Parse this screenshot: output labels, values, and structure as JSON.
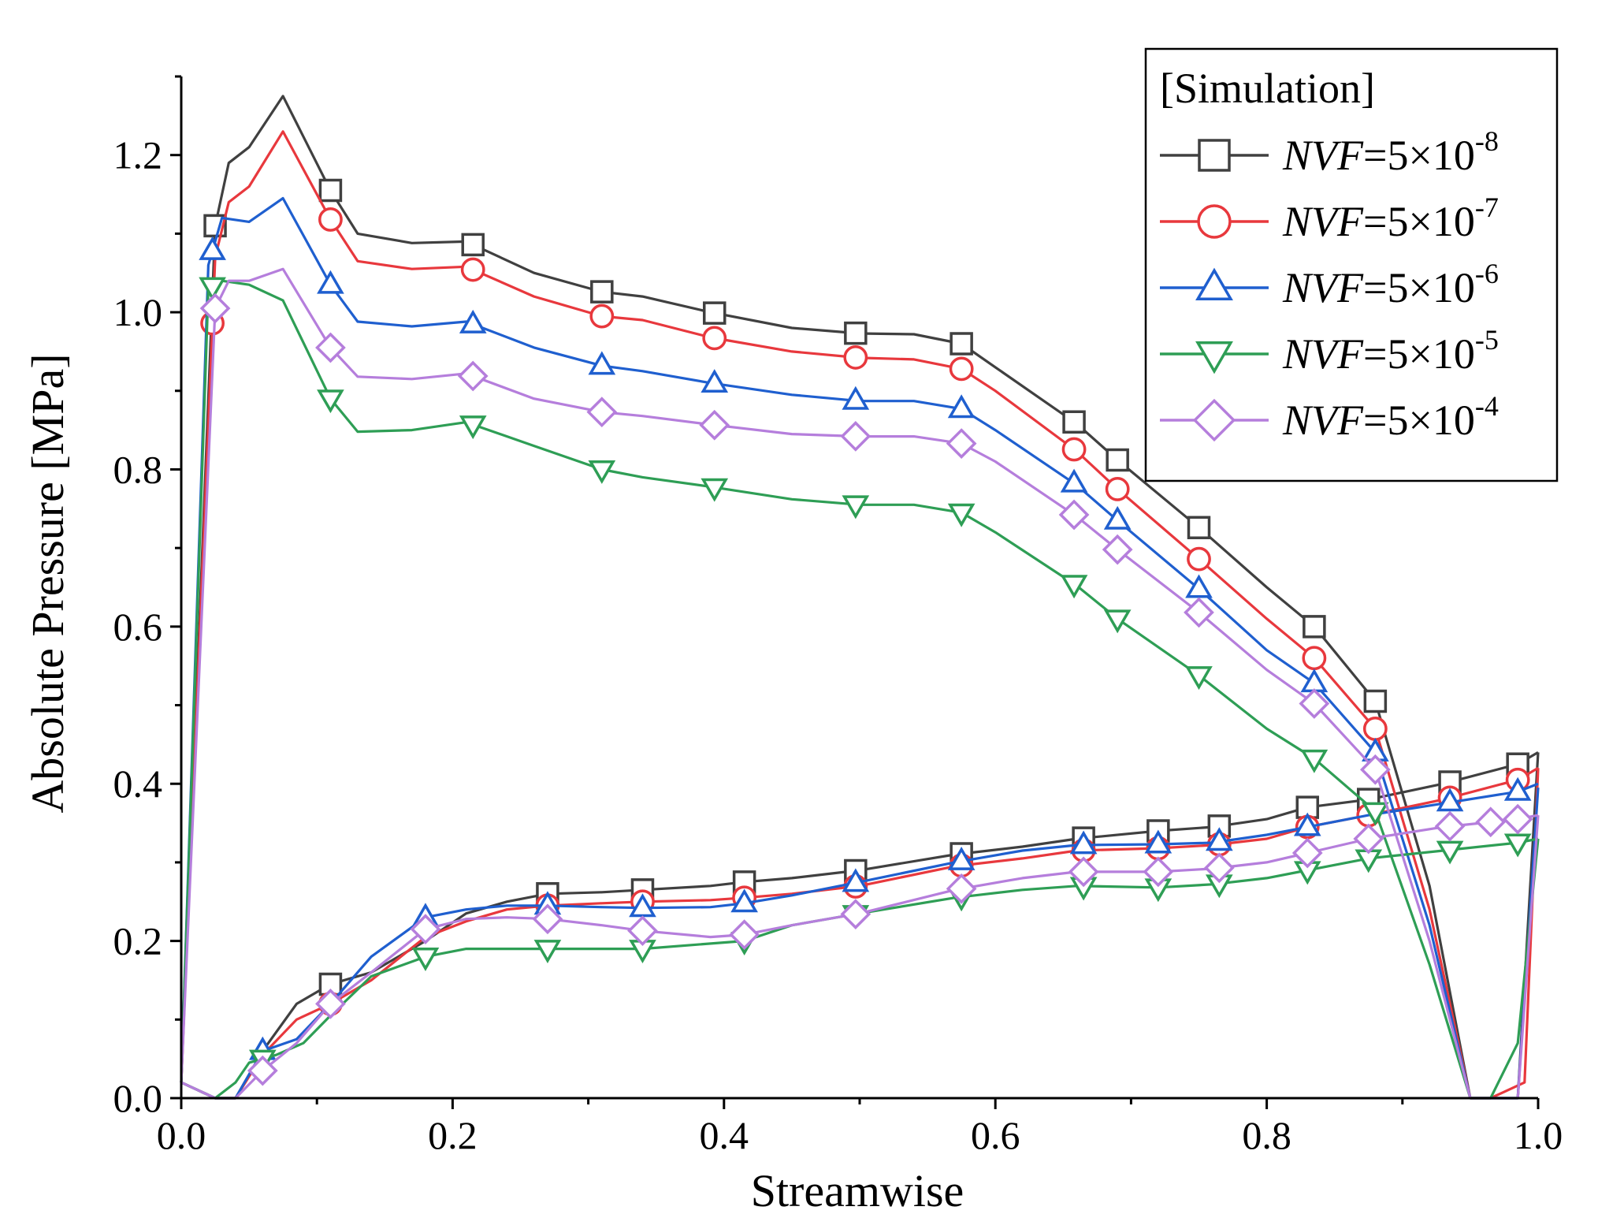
{
  "chart_data": {
    "type": "line",
    "title": "",
    "xlabel": "Streamwise",
    "ylabel": "Absolute Pressure [MPa]",
    "xlim": [
      0.0,
      1.0
    ],
    "ylim": [
      0.0,
      1.3
    ],
    "x_ticks": [
      "0.0",
      "0.2",
      "0.4",
      "0.6",
      "0.8",
      "1.0"
    ],
    "y_ticks": [
      "0.0",
      "0.2",
      "0.4",
      "0.6",
      "0.8",
      "1.0",
      "1.2"
    ],
    "legend": {
      "title": "[Simulation]",
      "position": "top-right",
      "prefix": "NVF",
      "equals": "=5×10"
    },
    "series": [
      {
        "name": "NVF=5×10-8",
        "exponent": "-8",
        "color": "#404040",
        "marker": "square",
        "upper": {
          "x": [
            0.0,
            0.025,
            0.035,
            0.05,
            0.075,
            0.11,
            0.13,
            0.17,
            0.21,
            0.26,
            0.31,
            0.34,
            0.39,
            0.45,
            0.5,
            0.54,
            0.575,
            0.6,
            0.66,
            0.69,
            0.75,
            0.8,
            0.835,
            0.88,
            0.92,
            0.95,
            0.965,
            0.985,
            1.0
          ],
          "y": [
            0.02,
            1.11,
            1.19,
            1.21,
            1.275,
            1.155,
            1.1,
            1.088,
            1.09,
            1.05,
            1.026,
            1.02,
            1.0,
            0.98,
            0.973,
            0.972,
            0.96,
            0.93,
            0.858,
            0.812,
            0.726,
            0.65,
            0.6,
            0.505,
            0.27,
            0.0,
            0.0,
            0.0,
            0.44
          ]
        },
        "lower": {
          "x": [
            0.0,
            0.025,
            0.04,
            0.06,
            0.085,
            0.11,
            0.14,
            0.18,
            0.21,
            0.24,
            0.27,
            0.31,
            0.34,
            0.39,
            0.415,
            0.45,
            0.5,
            0.57,
            0.62,
            0.66,
            0.72,
            0.76,
            0.8,
            0.83,
            0.875,
            0.93,
            0.985,
            1.0
          ],
          "y": [
            0.02,
            0.0,
            0.0,
            0.06,
            0.12,
            0.145,
            0.16,
            0.2,
            0.235,
            0.25,
            0.26,
            0.262,
            0.265,
            0.27,
            0.275,
            0.28,
            0.29,
            0.31,
            0.32,
            0.33,
            0.34,
            0.345,
            0.355,
            0.37,
            0.38,
            0.4,
            0.425,
            0.44
          ]
        },
        "markers_upper_x": [
          0.025,
          0.11,
          0.215,
          0.31,
          0.393,
          0.497,
          0.575,
          0.658,
          0.69,
          0.75,
          0.835,
          0.88
        ],
        "markers_lower_x": [
          0.11,
          0.27,
          0.34,
          0.415,
          0.497,
          0.575,
          0.665,
          0.72,
          0.765,
          0.83,
          0.875,
          0.935,
          0.985
        ]
      },
      {
        "name": "NVF=5×10-7",
        "exponent": "-7",
        "color": "#e8383d",
        "marker": "circle",
        "upper": {
          "x": [
            0.0,
            0.025,
            0.035,
            0.05,
            0.075,
            0.11,
            0.13,
            0.17,
            0.21,
            0.26,
            0.31,
            0.34,
            0.39,
            0.45,
            0.5,
            0.54,
            0.575,
            0.6,
            0.66,
            0.69,
            0.75,
            0.8,
            0.835,
            0.88,
            0.92,
            0.95,
            0.965,
            0.99,
            1.0
          ],
          "y": [
            0.02,
            1.07,
            1.14,
            1.16,
            1.23,
            1.118,
            1.065,
            1.055,
            1.058,
            1.02,
            0.995,
            0.99,
            0.968,
            0.95,
            0.942,
            0.94,
            0.928,
            0.9,
            0.823,
            0.775,
            0.686,
            0.61,
            0.56,
            0.47,
            0.24,
            0.0,
            0.0,
            0.02,
            0.42
          ]
        },
        "lower": {
          "x": [
            0.0,
            0.025,
            0.04,
            0.06,
            0.085,
            0.11,
            0.14,
            0.18,
            0.21,
            0.24,
            0.27,
            0.31,
            0.34,
            0.39,
            0.415,
            0.45,
            0.5,
            0.57,
            0.62,
            0.66,
            0.72,
            0.76,
            0.8,
            0.83,
            0.875,
            0.93,
            0.985,
            1.0
          ],
          "y": [
            0.02,
            0.0,
            0.0,
            0.055,
            0.1,
            0.12,
            0.15,
            0.205,
            0.225,
            0.24,
            0.245,
            0.248,
            0.25,
            0.252,
            0.255,
            0.26,
            0.27,
            0.295,
            0.305,
            0.315,
            0.318,
            0.322,
            0.33,
            0.345,
            0.36,
            0.38,
            0.405,
            0.42
          ]
        },
        "markers_upper_x": [
          0.023,
          0.11,
          0.215,
          0.31,
          0.393,
          0.497,
          0.575,
          0.658,
          0.69,
          0.75,
          0.835,
          0.88
        ],
        "markers_lower_x": [
          0.11,
          0.27,
          0.34,
          0.415,
          0.497,
          0.575,
          0.665,
          0.72,
          0.765,
          0.83,
          0.875,
          0.935,
          0.985
        ]
      },
      {
        "name": "NVF=5×10-6",
        "exponent": "-6",
        "color": "#1f5fcf",
        "marker": "triangle-up",
        "upper": {
          "x": [
            0.0,
            0.02,
            0.03,
            0.05,
            0.075,
            0.11,
            0.13,
            0.17,
            0.21,
            0.26,
            0.31,
            0.34,
            0.39,
            0.45,
            0.5,
            0.54,
            0.575,
            0.6,
            0.66,
            0.69,
            0.75,
            0.8,
            0.835,
            0.88,
            0.92,
            0.95,
            0.965,
            0.985,
            1.0
          ],
          "y": [
            0.02,
            1.06,
            1.12,
            1.115,
            1.145,
            1.035,
            0.988,
            0.982,
            0.988,
            0.955,
            0.932,
            0.925,
            0.91,
            0.895,
            0.887,
            0.887,
            0.877,
            0.85,
            0.78,
            0.735,
            0.648,
            0.57,
            0.528,
            0.44,
            0.22,
            0.0,
            0.0,
            0.0,
            0.395
          ]
        },
        "lower": {
          "x": [
            0.0,
            0.025,
            0.04,
            0.06,
            0.085,
            0.11,
            0.14,
            0.18,
            0.21,
            0.24,
            0.27,
            0.31,
            0.34,
            0.39,
            0.415,
            0.45,
            0.5,
            0.57,
            0.62,
            0.66,
            0.72,
            0.76,
            0.8,
            0.83,
            0.875,
            0.93,
            0.985,
            1.0
          ],
          "y": [
            0.02,
            0.0,
            0.0,
            0.06,
            0.075,
            0.12,
            0.18,
            0.23,
            0.24,
            0.245,
            0.245,
            0.243,
            0.242,
            0.243,
            0.248,
            0.258,
            0.275,
            0.3,
            0.315,
            0.322,
            0.323,
            0.325,
            0.335,
            0.345,
            0.36,
            0.375,
            0.39,
            0.4
          ]
        },
        "markers_upper_x": [
          0.023,
          0.11,
          0.215,
          0.31,
          0.393,
          0.497,
          0.575,
          0.658,
          0.69,
          0.75,
          0.835,
          0.88
        ],
        "markers_lower_x": [
          0.06,
          0.18,
          0.27,
          0.34,
          0.415,
          0.497,
          0.575,
          0.665,
          0.72,
          0.765,
          0.83,
          0.935,
          0.985
        ]
      },
      {
        "name": "NVF=5×10-5",
        "exponent": "-5",
        "color": "#2e9e55",
        "marker": "triangle-down",
        "upper": {
          "x": [
            0.0,
            0.02,
            0.03,
            0.05,
            0.075,
            0.11,
            0.13,
            0.17,
            0.21,
            0.26,
            0.31,
            0.34,
            0.39,
            0.45,
            0.5,
            0.54,
            0.575,
            0.6,
            0.66,
            0.69,
            0.75,
            0.8,
            0.835,
            0.88,
            0.92,
            0.95,
            0.965,
            0.985,
            1.0
          ],
          "y": [
            0.02,
            1.03,
            1.04,
            1.035,
            1.015,
            0.89,
            0.848,
            0.85,
            0.86,
            0.83,
            0.8,
            0.79,
            0.778,
            0.762,
            0.755,
            0.755,
            0.745,
            0.72,
            0.652,
            0.61,
            0.538,
            0.47,
            0.432,
            0.365,
            0.17,
            0.0,
            0.0,
            0.07,
            0.33
          ]
        },
        "lower": {
          "x": [
            0.0,
            0.025,
            0.04,
            0.05,
            0.07,
            0.09,
            0.11,
            0.14,
            0.18,
            0.21,
            0.27,
            0.34,
            0.415,
            0.45,
            0.5,
            0.57,
            0.62,
            0.66,
            0.72,
            0.76,
            0.8,
            0.83,
            0.875,
            0.93,
            0.985,
            1.0
          ],
          "y": [
            0.02,
            0.0,
            0.02,
            0.045,
            0.055,
            0.07,
            0.105,
            0.155,
            0.18,
            0.19,
            0.19,
            0.19,
            0.2,
            0.22,
            0.235,
            0.255,
            0.265,
            0.27,
            0.268,
            0.272,
            0.28,
            0.29,
            0.305,
            0.315,
            0.325,
            0.33
          ]
        },
        "markers_upper_x": [
          0.023,
          0.11,
          0.215,
          0.31,
          0.393,
          0.497,
          0.575,
          0.658,
          0.69,
          0.75,
          0.835,
          0.88
        ],
        "markers_lower_x": [
          0.06,
          0.18,
          0.27,
          0.34,
          0.415,
          0.497,
          0.575,
          0.665,
          0.72,
          0.765,
          0.83,
          0.875,
          0.935,
          0.985
        ]
      },
      {
        "name": "NVF=5×10-4",
        "exponent": "-4",
        "color": "#b57edc",
        "marker": "diamond",
        "upper": {
          "x": [
            0.0,
            0.025,
            0.035,
            0.05,
            0.075,
            0.11,
            0.13,
            0.17,
            0.21,
            0.26,
            0.31,
            0.34,
            0.39,
            0.45,
            0.5,
            0.54,
            0.575,
            0.6,
            0.66,
            0.69,
            0.75,
            0.8,
            0.835,
            0.88,
            0.92,
            0.95,
            0.965,
            0.985,
            1.0
          ],
          "y": [
            0.02,
            1.005,
            1.04,
            1.04,
            1.055,
            0.955,
            0.918,
            0.915,
            0.922,
            0.89,
            0.873,
            0.868,
            0.857,
            0.845,
            0.842,
            0.842,
            0.833,
            0.81,
            0.74,
            0.698,
            0.618,
            0.545,
            0.502,
            0.418,
            0.2,
            0.0,
            0.0,
            0.0,
            0.36
          ]
        },
        "lower": {
          "x": [
            0.0,
            0.025,
            0.04,
            0.06,
            0.085,
            0.11,
            0.14,
            0.18,
            0.21,
            0.24,
            0.27,
            0.31,
            0.34,
            0.39,
            0.415,
            0.45,
            0.5,
            0.57,
            0.62,
            0.66,
            0.72,
            0.76,
            0.8,
            0.83,
            0.875,
            0.93,
            0.985,
            1.0
          ],
          "y": [
            0.02,
            0.0,
            0.0,
            0.035,
            0.07,
            0.12,
            0.16,
            0.215,
            0.228,
            0.23,
            0.228,
            0.22,
            0.213,
            0.205,
            0.208,
            0.22,
            0.235,
            0.265,
            0.28,
            0.288,
            0.288,
            0.292,
            0.3,
            0.312,
            0.33,
            0.345,
            0.355,
            0.36
          ]
        },
        "markers_upper_x": [
          0.025,
          0.11,
          0.215,
          0.31,
          0.393,
          0.497,
          0.575,
          0.658,
          0.69,
          0.75,
          0.835,
          0.88
        ],
        "markers_lower_x": [
          0.06,
          0.11,
          0.18,
          0.27,
          0.34,
          0.415,
          0.497,
          0.575,
          0.665,
          0.72,
          0.765,
          0.83,
          0.875,
          0.935,
          0.965,
          0.985
        ]
      }
    ]
  }
}
